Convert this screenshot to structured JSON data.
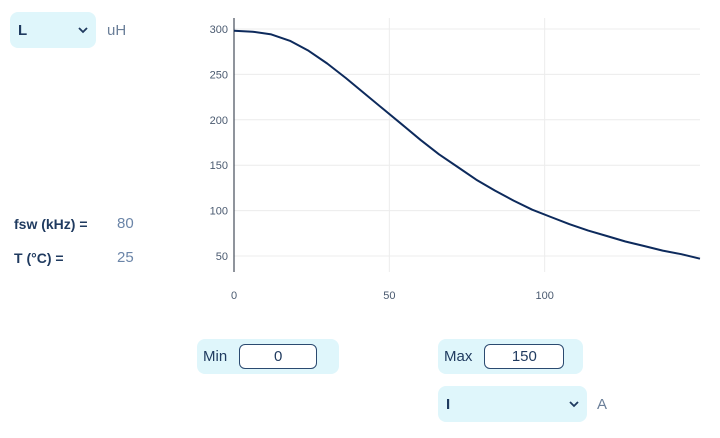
{
  "y_selector": {
    "selected": "L",
    "unit": "uH"
  },
  "params": [
    {
      "label": "fsw (kHz) =",
      "value": "80"
    },
    {
      "label": "T (°C) =",
      "value": "25"
    }
  ],
  "range": {
    "min_label": "Min",
    "min_value": "0",
    "max_label": "Max",
    "max_value": "150"
  },
  "x_selector": {
    "selected": "I",
    "unit": "A"
  },
  "chart_data": {
    "type": "line",
    "title": "",
    "xlabel": "",
    "ylabel": "",
    "xlim": [
      0,
      150
    ],
    "ylim": [
      30,
      300
    ],
    "x_ticks": [
      "0",
      "50",
      "100"
    ],
    "y_ticks": [
      "300",
      "250",
      "200",
      "150",
      "100",
      "50"
    ],
    "grid": true,
    "series": [
      {
        "color": "#0d2a5c",
        "x": [
          0,
          6,
          12,
          18,
          24,
          30,
          36,
          42,
          48,
          54,
          60,
          66,
          72,
          78,
          84,
          90,
          96,
          102,
          108,
          114,
          120,
          126,
          132,
          138,
          144,
          150
        ],
        "y": [
          298,
          297,
          294,
          287,
          276,
          262,
          246,
          229,
          212,
          195,
          178,
          162,
          148,
          134,
          122,
          111,
          101,
          93,
          85,
          78,
          72,
          66,
          61,
          56,
          52,
          47
        ]
      }
    ]
  }
}
